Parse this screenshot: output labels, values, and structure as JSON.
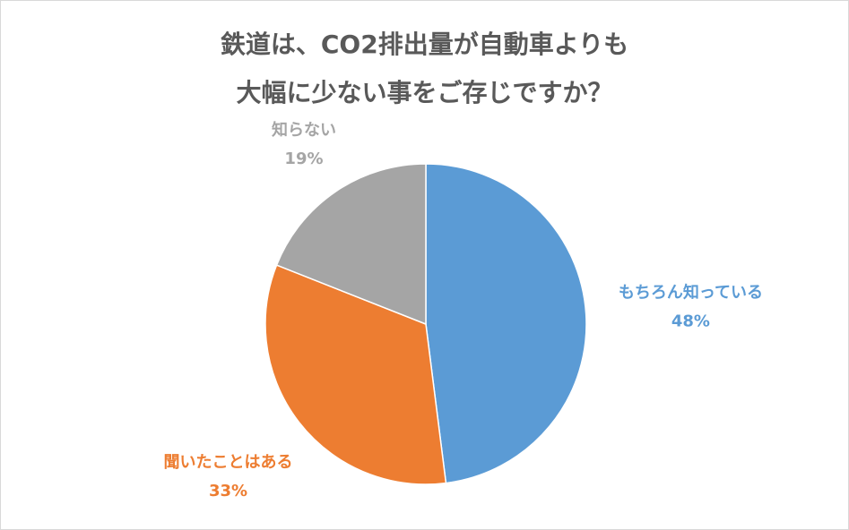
{
  "chart_data": {
    "type": "pie",
    "title": "鉄道は、CO2排出量が自動車よりも\n大幅に少ない事をご存じですか？",
    "categories": [
      "もちろん知っている",
      "聞いたことはある",
      "知らない"
    ],
    "values": [
      48,
      33,
      19
    ],
    "value_labels": [
      "48%",
      "33%",
      "19%"
    ],
    "colors": [
      "#5b9bd5",
      "#ed7d31",
      "#a5a5a5"
    ]
  }
}
